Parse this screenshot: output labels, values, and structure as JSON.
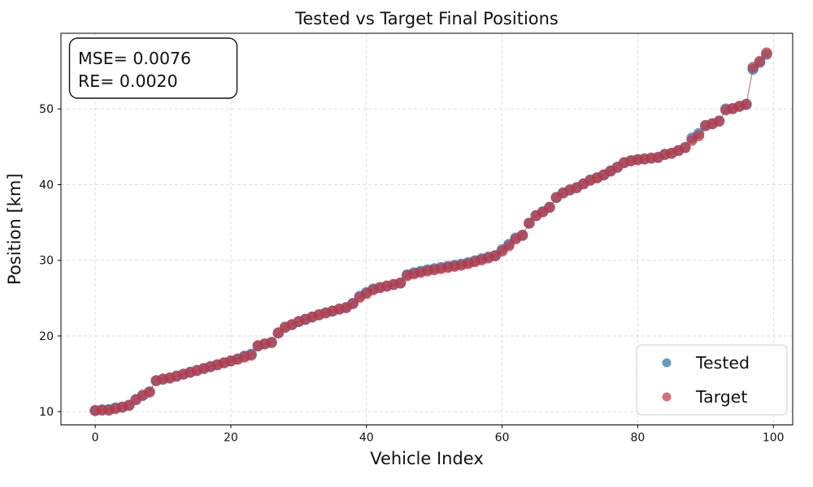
{
  "figure": {
    "background": "#ffffff"
  },
  "chart_data": {
    "type": "scatter",
    "title": "Tested vs Target Final Positions",
    "xlabel": "Vehicle Index",
    "ylabel": "Position [km]",
    "annotation": {
      "lines": [
        "MSE= 0.0076",
        "RE= 0.0020"
      ],
      "mse": "0.0076",
      "re": "0.0020"
    },
    "legend": {
      "position": "lower right",
      "entries": [
        {
          "label": "Tested",
          "color": "#2e6da4"
        },
        {
          "label": "Target",
          "color": "#bf3645"
        }
      ]
    },
    "x_axis": {
      "ticks": [
        0,
        20,
        40,
        60,
        80,
        100
      ],
      "range": [
        -5.05,
        102.85
      ]
    },
    "y_axis": {
      "ticks": [
        10,
        20,
        30,
        40,
        50
      ],
      "range": [
        8.25,
        60.0
      ]
    },
    "grid": true,
    "grid_color": "#d9d9d9",
    "marker_alpha": 0.7,
    "x_note": "x value = vehicle index 0..99",
    "series": [
      {
        "name": "Tested",
        "color": "#2e6da4",
        "values": [
          10.15,
          10.22,
          10.28,
          10.5,
          10.6,
          10.85,
          11.6,
          12.15,
          12.6,
          14.1,
          14.3,
          14.45,
          14.7,
          14.95,
          15.2,
          15.45,
          15.7,
          15.95,
          16.2,
          16.45,
          16.7,
          16.95,
          17.35,
          17.6,
          18.7,
          18.95,
          19.15,
          20.4,
          21.15,
          21.5,
          21.9,
          22.2,
          22.5,
          22.8,
          23.05,
          23.3,
          23.55,
          23.75,
          24.3,
          25.25,
          25.75,
          26.22,
          26.4,
          26.6,
          26.8,
          27.0,
          28.1,
          28.35,
          28.55,
          28.75,
          28.9,
          29.05,
          29.2,
          29.35,
          29.5,
          29.7,
          29.95,
          30.2,
          30.45,
          30.6,
          31.4,
          32.1,
          32.95,
          33.3,
          34.9,
          35.9,
          36.4,
          37.0,
          38.3,
          38.9,
          39.3,
          39.6,
          40.1,
          40.6,
          40.9,
          41.3,
          41.8,
          42.3,
          42.9,
          43.15,
          43.3,
          43.4,
          43.5,
          43.6,
          44.0,
          44.15,
          44.5,
          44.9,
          46.15,
          46.75,
          47.8,
          48.05,
          48.4,
          50.0,
          50.05,
          50.35,
          50.6,
          55.25,
          56.15,
          57.2
        ]
      },
      {
        "name": "Target",
        "color": "#bf3645",
        "values": [
          10.15,
          10.22,
          10.18,
          10.4,
          10.6,
          10.85,
          11.6,
          12.15,
          12.6,
          14.1,
          14.3,
          14.45,
          14.7,
          14.95,
          15.2,
          15.45,
          15.7,
          15.95,
          16.2,
          16.45,
          16.7,
          16.95,
          17.2,
          17.45,
          18.7,
          18.95,
          19.15,
          20.4,
          21.15,
          21.5,
          21.9,
          22.2,
          22.5,
          22.8,
          23.05,
          23.3,
          23.55,
          23.75,
          24.3,
          25.1,
          25.6,
          26.1,
          26.4,
          26.6,
          26.8,
          27.0,
          27.95,
          28.2,
          28.4,
          28.6,
          28.75,
          28.9,
          29.05,
          29.2,
          29.35,
          29.55,
          29.8,
          30.05,
          30.3,
          30.6,
          31.2,
          31.9,
          32.8,
          33.3,
          34.9,
          35.9,
          36.4,
          37.0,
          38.3,
          38.9,
          39.3,
          39.6,
          40.1,
          40.6,
          40.9,
          41.3,
          41.8,
          42.3,
          42.9,
          43.15,
          43.3,
          43.4,
          43.5,
          43.6,
          44.0,
          44.15,
          44.5,
          44.9,
          45.85,
          46.45,
          47.8,
          48.05,
          48.4,
          49.85,
          50.05,
          50.35,
          50.6,
          55.5,
          56.3,
          57.4
        ]
      }
    ]
  }
}
